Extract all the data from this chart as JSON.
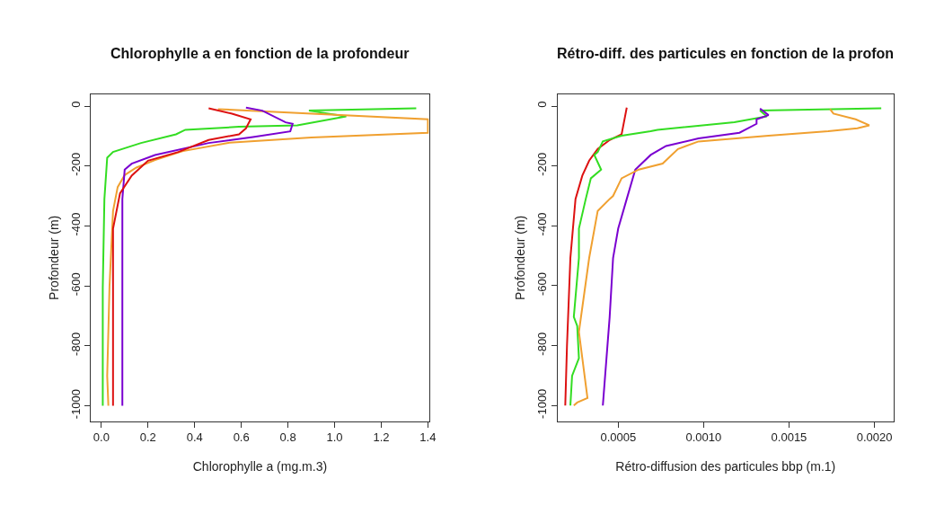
{
  "chart_data": [
    {
      "type": "line",
      "title": "Chlorophylle a en fonction de la profondeur",
      "xlabel": "Chlorophylle a (mg.m.3)",
      "ylabel": "Profondeur (m)",
      "xlim": [
        -0.045,
        1.405
      ],
      "ylim": [
        -1052,
        40
      ],
      "xticks": [
        {
          "value": 0,
          "label": "0.0"
        },
        0.2,
        0.4,
        0.6,
        0.8,
        {
          "value": 1,
          "label": "1.0"
        },
        1.2,
        1.4
      ],
      "yticks": [
        -1000,
        -800,
        -600,
        -400,
        -200,
        0
      ],
      "line_style": "solid",
      "series": [
        {
          "color": "#33dd22",
          "x": [
            1.35,
            0.89,
            1.05,
            0.84,
            0.59,
            0.36,
            0.32,
            0.17,
            0.05,
            0.025,
            0.013,
            0.006,
            0.006
          ],
          "values": [
            -7,
            -15,
            -34,
            -64,
            -69,
            -79,
            -94,
            -123,
            -153,
            -172,
            -310,
            -606,
            -1000
          ]
        },
        {
          "color": "#f0a030",
          "x": [
            0.5,
            1.4,
            1.4,
            0.9,
            0.55,
            0.35,
            0.23,
            0.15,
            0.1,
            0.07,
            0.05,
            0.035,
            0.025,
            0.03
          ],
          "values": [
            -10,
            -44,
            -89,
            -105,
            -122,
            -150,
            -180,
            -205,
            -230,
            -270,
            -350,
            -600,
            -900,
            -1000
          ]
        },
        {
          "color": "#7a00d0",
          "x": [
            0.62,
            0.69,
            0.79,
            0.82,
            0.81,
            0.65,
            0.46,
            0.23,
            0.13,
            0.1,
            0.09,
            0.09
          ],
          "values": [
            -5,
            -15,
            -54,
            -59,
            -84,
            -103,
            -123,
            -163,
            -192,
            -212,
            -310,
            -1000
          ]
        },
        {
          "color": "#dd1111",
          "x": [
            0.46,
            0.56,
            0.64,
            0.62,
            0.59,
            0.46,
            0.33,
            0.2,
            0.13,
            0.08,
            0.05,
            0.05
          ],
          "values": [
            -7,
            -25,
            -44,
            -74,
            -94,
            -113,
            -153,
            -182,
            -232,
            -291,
            -409,
            -1000
          ]
        }
      ]
    },
    {
      "type": "line",
      "title": "Rétro-diff. des particules en fonction de la profon",
      "xlabel": "Rétro-diffusion des particules bbp (m.1)",
      "ylabel": "Profondeur (m)",
      "xlim": [
        0.000144,
        0.002113
      ],
      "ylim": [
        -1053,
        40
      ],
      "xticks": [
        0.0005,
        {
          "value": 0.001,
          "label": "0.0010"
        },
        0.0015,
        {
          "value": 0.002,
          "label": "0.0020"
        }
      ],
      "yticks": [
        -1000,
        -800,
        -600,
        -400,
        -200,
        0
      ],
      "line_style": "solid",
      "series": [
        {
          "color": "#dd1111",
          "x": [
            0.00055,
            0.00052,
            0.00045,
            0.00038,
            0.00033,
            0.00029,
            0.00025,
            0.00022,
            0.0002,
            0.00019
          ],
          "values": [
            -5,
            -94,
            -113,
            -143,
            -182,
            -232,
            -310,
            -507,
            -803,
            -1000
          ]
        },
        {
          "color": "#33dd22",
          "x": [
            0.00204,
            0.00133,
            0.00137,
            0.00118,
            0.00073,
            0.00069,
            0.00052,
            0.00041,
            0.00038,
            0.00036,
            0.0004,
            0.00034,
            0.00031,
            0.00027,
            0.00027,
            0.00024,
            0.00026,
            0.00027,
            0.00023,
            0.00022
          ],
          "values": [
            -7,
            -15,
            -34,
            -54,
            -79,
            -84,
            -99,
            -118,
            -153,
            -163,
            -212,
            -241,
            -310,
            -409,
            -507,
            -704,
            -734,
            -842,
            -901,
            -1000
          ]
        },
        {
          "color": "#7a00d0",
          "x": [
            0.00133,
            0.00138,
            0.00131,
            0.00131,
            0.00121,
            0.00097,
            0.00078,
            0.00069,
            0.0006,
            0.00055,
            0.0005,
            0.00047,
            0.00045,
            0.00041
          ],
          "values": [
            -8,
            -30,
            -44,
            -59,
            -89,
            -108,
            -133,
            -163,
            -212,
            -310,
            -409,
            -507,
            -704,
            -1000
          ]
        },
        {
          "color": "#f0a030",
          "x": [
            0.00174,
            0.00176,
            0.00189,
            0.00197,
            0.0019,
            0.00173,
            0.00138,
            0.00097,
            0.00085,
            0.00076,
            0.00062,
            0.00052,
            0.00047,
            0.00045,
            0.00038,
            0.00033,
            0.00027,
            0.00032,
            0.00026,
            0.00024
          ],
          "values": [
            -10,
            -25,
            -44,
            -64,
            -74,
            -84,
            -99,
            -118,
            -143,
            -192,
            -212,
            -241,
            -300,
            -310,
            -350,
            -507,
            -754,
            -975,
            -990,
            -1000
          ]
        }
      ]
    }
  ]
}
